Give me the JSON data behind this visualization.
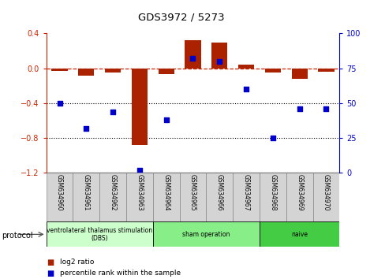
{
  "title": "GDS3972 / 5273",
  "samples": [
    "GSM634960",
    "GSM634961",
    "GSM634962",
    "GSM634963",
    "GSM634964",
    "GSM634965",
    "GSM634966",
    "GSM634967",
    "GSM634968",
    "GSM634969",
    "GSM634970"
  ],
  "log2_ratio": [
    -0.03,
    -0.08,
    -0.05,
    -0.88,
    -0.07,
    0.32,
    0.3,
    0.04,
    -0.05,
    -0.12,
    -0.04
  ],
  "percentile_rank": [
    50,
    32,
    44,
    2,
    38,
    82,
    80,
    60,
    25,
    46,
    46
  ],
  "groups": [
    {
      "label": "ventrolateral thalamus stimulation\n(DBS)",
      "start": 0,
      "end": 3,
      "color": "#ccffcc"
    },
    {
      "label": "sham operation",
      "start": 4,
      "end": 7,
      "color": "#88ee88"
    },
    {
      "label": "naive",
      "start": 8,
      "end": 10,
      "color": "#44cc44"
    }
  ],
  "left_ylim": [
    -1.2,
    0.4
  ],
  "left_yticks": [
    -1.2,
    -0.8,
    -0.4,
    0.0,
    0.4
  ],
  "right_ylim": [
    0,
    100
  ],
  "right_yticks": [
    0,
    25,
    50,
    75,
    100
  ],
  "bar_color": "#aa2200",
  "dot_color": "#0000cc",
  "dashed_line_color": "#cc2200",
  "dotted_line_color": "#000000",
  "bg_color": "#ffffff",
  "plot_bg": "#ffffff",
  "legend_items": [
    {
      "label": "log2 ratio",
      "color": "#aa2200"
    },
    {
      "label": "percentile rank within the sample",
      "color": "#0000cc"
    }
  ]
}
